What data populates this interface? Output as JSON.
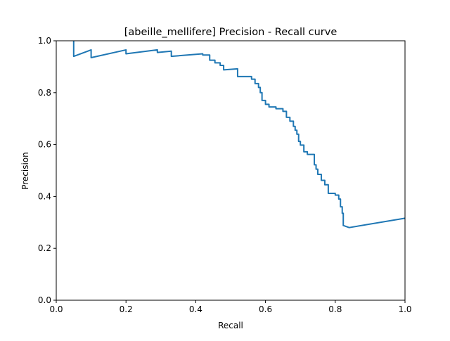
{
  "chart_data": {
    "type": "line",
    "title": "[abeille_mellifere] Precision - Recall curve",
    "xlabel": "Recall",
    "ylabel": "Precision",
    "xlim": [
      0,
      1
    ],
    "ylim": [
      0,
      1
    ],
    "xticks": [
      "0.0",
      "0.2",
      "0.4",
      "0.6",
      "0.8",
      "1.0"
    ],
    "yticks": [
      "0.0",
      "0.2",
      "0.4",
      "0.6",
      "0.8",
      "1.0"
    ],
    "grid": false,
    "legend": "none",
    "line_color": "#1f77b4",
    "series": [
      {
        "x": [
          0.05,
          0.05,
          0.1,
          0.1,
          0.2,
          0.2,
          0.29,
          0.29,
          0.33,
          0.33,
          0.42,
          0.42,
          0.44,
          0.44,
          0.455,
          0.455,
          0.47,
          0.47,
          0.48,
          0.48,
          0.52,
          0.52,
          0.56,
          0.56,
          0.57,
          0.57,
          0.58,
          0.58,
          0.585,
          0.585,
          0.59,
          0.59,
          0.6,
          0.6,
          0.61,
          0.61,
          0.63,
          0.63,
          0.65,
          0.65,
          0.66,
          0.66,
          0.67,
          0.67,
          0.68,
          0.68,
          0.685,
          0.685,
          0.69,
          0.69,
          0.695,
          0.695,
          0.7,
          0.7,
          0.71,
          0.71,
          0.72,
          0.72,
          0.74,
          0.74,
          0.745,
          0.745,
          0.75,
          0.75,
          0.76,
          0.76,
          0.77,
          0.77,
          0.78,
          0.78,
          0.8,
          0.8,
          0.81,
          0.81,
          0.815,
          0.815,
          0.82,
          0.82,
          0.823,
          0.823,
          0.84,
          1.0
        ],
        "y": [
          1.0,
          0.94,
          0.965,
          0.935,
          0.965,
          0.95,
          0.965,
          0.955,
          0.96,
          0.94,
          0.95,
          0.945,
          0.945,
          0.925,
          0.925,
          0.915,
          0.915,
          0.905,
          0.905,
          0.888,
          0.892,
          0.862,
          0.862,
          0.852,
          0.852,
          0.835,
          0.835,
          0.82,
          0.82,
          0.8,
          0.8,
          0.77,
          0.77,
          0.755,
          0.755,
          0.745,
          0.745,
          0.738,
          0.738,
          0.728,
          0.728,
          0.705,
          0.705,
          0.69,
          0.69,
          0.67,
          0.67,
          0.655,
          0.655,
          0.64,
          0.64,
          0.612,
          0.612,
          0.598,
          0.598,
          0.572,
          0.572,
          0.562,
          0.562,
          0.522,
          0.522,
          0.505,
          0.505,
          0.485,
          0.485,
          0.462,
          0.462,
          0.445,
          0.445,
          0.412,
          0.412,
          0.405,
          0.405,
          0.39,
          0.39,
          0.36,
          0.36,
          0.335,
          0.335,
          0.288,
          0.28,
          0.316
        ]
      }
    ]
  }
}
